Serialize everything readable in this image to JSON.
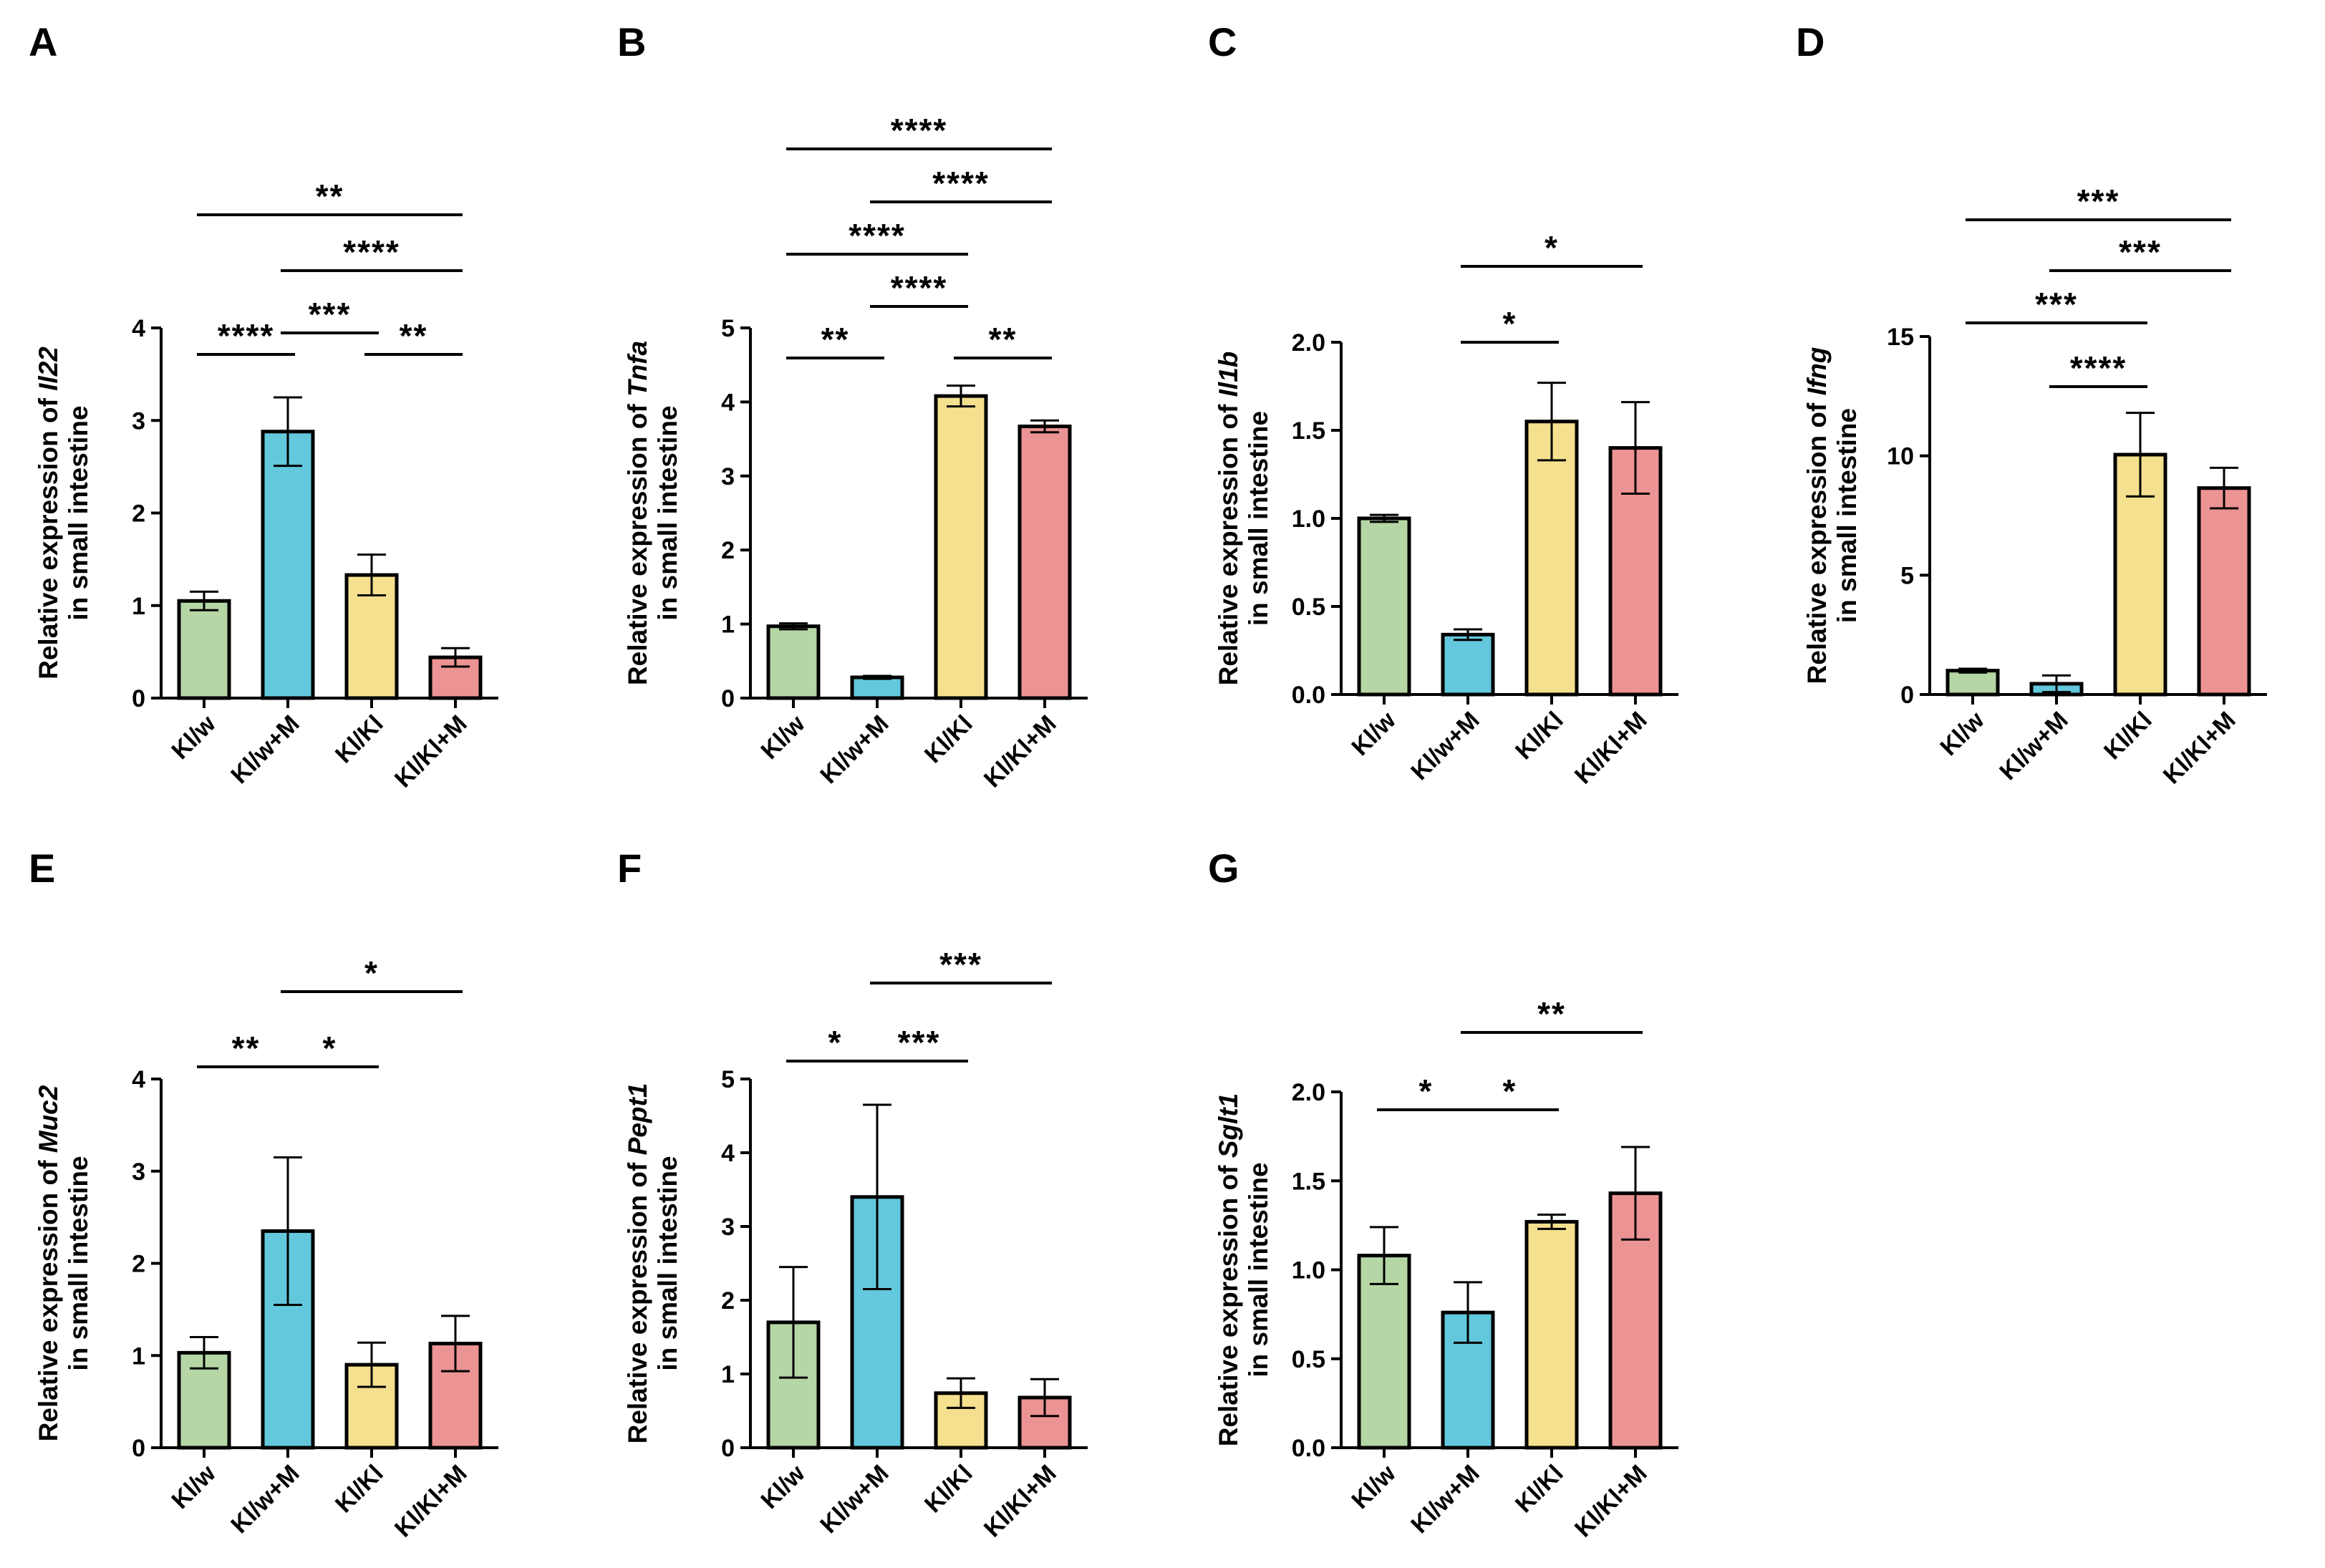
{
  "colors": {
    "Kl/w": "#b5d6a5",
    "Kl/w+M": "#63c8dc",
    "Kl/Kl": "#f5e08f",
    "Kl/Kl+M": "#ec9393",
    "stroke": "#000000"
  },
  "chart_data": [
    {
      "type": "bar",
      "panel": "A",
      "categories": [
        "Kl/w",
        "Kl/w+M",
        "Kl/Kl",
        "Kl/Kl+M"
      ],
      "values": [
        1.05,
        2.88,
        1.33,
        0.44
      ],
      "errors": [
        0.1,
        0.37,
        0.22,
        0.1
      ],
      "ylabel_prefix": "Relative expression of ",
      "gene": "Il22",
      "ylabel_line2": "in small intestine",
      "ylim": [
        0,
        4
      ],
      "yticks": [
        0,
        1,
        2,
        3,
        4
      ],
      "ytick_labels": [
        "0",
        "1",
        "2",
        "3",
        "4"
      ],
      "significance": [
        {
          "from": 0,
          "to": 3,
          "label": "**"
        },
        {
          "from": 1,
          "to": 3,
          "label": "****"
        },
        {
          "from": 1,
          "to": 2,
          "label": "***"
        },
        {
          "from": 0,
          "to": 1,
          "label": "****"
        },
        {
          "from": 2,
          "to": 3,
          "label": "**"
        }
      ]
    },
    {
      "type": "bar",
      "panel": "B",
      "categories": [
        "Kl/w",
        "Kl/w+M",
        "Kl/Kl",
        "Kl/Kl+M"
      ],
      "values": [
        0.97,
        0.28,
        4.08,
        3.67
      ],
      "errors": [
        0.04,
        0.02,
        0.14,
        0.08
      ],
      "ylabel_prefix": "Relative expression of ",
      "gene": "Tnfa",
      "ylabel_line2": "in small intestine",
      "ylim": [
        0,
        5
      ],
      "yticks": [
        0,
        1,
        2,
        3,
        4,
        5
      ],
      "ytick_labels": [
        "0",
        "1",
        "2",
        "3",
        "4",
        "5"
      ],
      "significance": [
        {
          "from": 0,
          "to": 3,
          "label": "****"
        },
        {
          "from": 1,
          "to": 3,
          "label": "****"
        },
        {
          "from": 0,
          "to": 2,
          "label": "****"
        },
        {
          "from": 1,
          "to": 2,
          "label": "****"
        },
        {
          "from": 0,
          "to": 1,
          "label": "**"
        },
        {
          "from": 2,
          "to": 3,
          "label": "**"
        }
      ]
    },
    {
      "type": "bar",
      "panel": "C",
      "categories": [
        "Kl/w",
        "Kl/w+M",
        "Kl/Kl",
        "Kl/Kl+M"
      ],
      "values": [
        1.0,
        0.34,
        1.55,
        1.4
      ],
      "errors": [
        0.02,
        0.03,
        0.22,
        0.26
      ],
      "ylabel_prefix": "Relative expression of ",
      "gene": "Il1b",
      "ylabel_line2": "in small intestine",
      "ylim": [
        0,
        2.0
      ],
      "yticks": [
        0,
        0.5,
        1.0,
        1.5,
        2.0
      ],
      "ytick_labels": [
        "0.0",
        "0.5",
        "1.0",
        "1.5",
        "2.0"
      ],
      "significance": [
        {
          "from": 1,
          "to": 3,
          "label": "*"
        },
        {
          "from": 1,
          "to": 2,
          "label": "*"
        }
      ]
    },
    {
      "type": "bar",
      "panel": "D",
      "categories": [
        "Kl/w",
        "Kl/w+M",
        "Kl/Kl",
        "Kl/Kl+M"
      ],
      "values": [
        1.0,
        0.45,
        10.05,
        8.65
      ],
      "errors": [
        0.08,
        0.35,
        1.75,
        0.85
      ],
      "ylabel_prefix": "Relative expression of ",
      "gene": "Ifng",
      "ylabel_line2": "in small intestine",
      "ylim": [
        0,
        15
      ],
      "yticks": [
        0,
        5,
        10,
        15
      ],
      "ytick_labels": [
        "0",
        "5",
        "10",
        "15"
      ],
      "significance": [
        {
          "from": 0,
          "to": 3,
          "label": "***"
        },
        {
          "from": 1,
          "to": 3,
          "label": "***"
        },
        {
          "from": 0,
          "to": 2,
          "label": "***"
        },
        {
          "from": 1,
          "to": 2,
          "label": "****"
        }
      ]
    },
    {
      "type": "bar",
      "panel": "E",
      "categories": [
        "Kl/w",
        "Kl/w+M",
        "Kl/Kl",
        "Kl/Kl+M"
      ],
      "values": [
        1.03,
        2.35,
        0.9,
        1.13
      ],
      "errors": [
        0.17,
        0.8,
        0.24,
        0.3
      ],
      "ylabel_prefix": "Relative expression of ",
      "gene": "Muc2",
      "ylabel_line2": "in small intestine",
      "ylim": [
        0,
        4
      ],
      "yticks": [
        0,
        1,
        2,
        3,
        4
      ],
      "ytick_labels": [
        "0",
        "1",
        "2",
        "3",
        "4"
      ],
      "significance": [
        {
          "from": 1,
          "to": 3,
          "label": "*"
        },
        {
          "from": 0,
          "to": 1,
          "label": "**"
        },
        {
          "from": 1,
          "to": 2,
          "label": "*"
        }
      ]
    },
    {
      "type": "bar",
      "panel": "F",
      "categories": [
        "Kl/w",
        "Kl/w+M",
        "Kl/Kl",
        "Kl/Kl+M"
      ],
      "values": [
        1.7,
        3.4,
        0.74,
        0.68
      ],
      "errors": [
        0.75,
        1.25,
        0.2,
        0.25
      ],
      "ylabel_prefix": "Relative expression of ",
      "gene": "Pept1",
      "ylabel_line2": "in small intestine",
      "ylim": [
        0,
        5
      ],
      "yticks": [
        0,
        1,
        2,
        3,
        4,
        5
      ],
      "ytick_labels": [
        "0",
        "1",
        "2",
        "3",
        "4",
        "5"
      ],
      "significance": [
        {
          "from": 1,
          "to": 3,
          "label": "***"
        },
        {
          "from": 0,
          "to": 1,
          "label": "*"
        },
        {
          "from": 1,
          "to": 2,
          "label": "***"
        }
      ]
    },
    {
      "type": "bar",
      "panel": "G",
      "categories": [
        "Kl/w",
        "Kl/w+M",
        "Kl/Kl",
        "Kl/Kl+M"
      ],
      "values": [
        1.08,
        0.76,
        1.27,
        1.43
      ],
      "errors": [
        0.16,
        0.17,
        0.04,
        0.26
      ],
      "ylabel_prefix": "Relative expression of ",
      "gene": "Sglt1",
      "ylabel_line2": "in small intestine",
      "ylim": [
        0,
        2.0
      ],
      "yticks": [
        0,
        0.5,
        1.0,
        1.5,
        2.0
      ],
      "ytick_labels": [
        "0.0",
        "0.5",
        "1.0",
        "1.5",
        "2.0"
      ],
      "significance": [
        {
          "from": 1,
          "to": 3,
          "label": "**"
        },
        {
          "from": 0,
          "to": 1,
          "label": "*"
        },
        {
          "from": 1,
          "to": 2,
          "label": "*"
        }
      ]
    }
  ]
}
